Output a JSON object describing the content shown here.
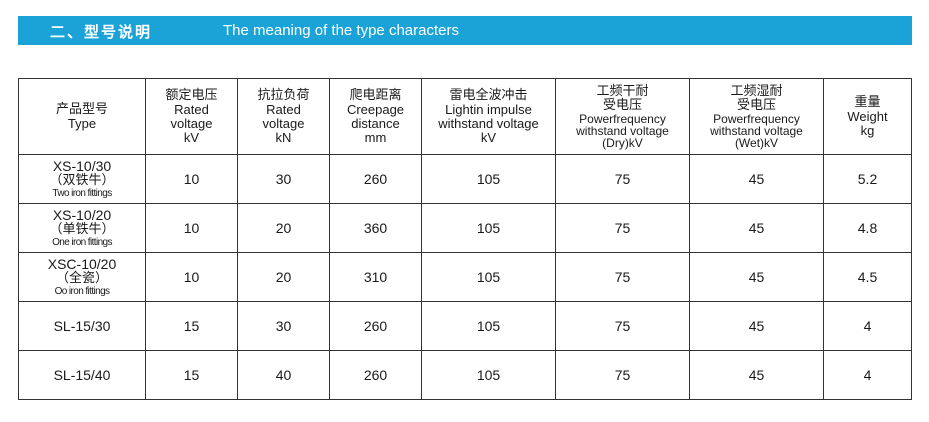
{
  "banner": {
    "title_zh": "二、型号说明",
    "title_en": "The meaning of the type characters"
  },
  "table": {
    "headers": [
      {
        "zh": "产品型号",
        "en": [
          "Type"
        ]
      },
      {
        "zh": "额定电压",
        "en": [
          "Rated",
          "voltage",
          "kV"
        ]
      },
      {
        "zh": "抗拉负荷",
        "en": [
          "Rated",
          "voltage",
          "kN"
        ]
      },
      {
        "zh": "爬电距离",
        "en": [
          "Creepage",
          "distance",
          "mm"
        ]
      },
      {
        "zh": "雷电全波冲击",
        "en": [
          "Lightin impulse",
          "withstand voltage",
          "kV"
        ]
      },
      {
        "zh": "工频干耐",
        "zh2": "受电压",
        "en": [
          "Powerfrequency",
          "withstand voltage",
          "(Dry)kV"
        ]
      },
      {
        "zh": "工频湿耐",
        "zh2": "受电压",
        "en": [
          "Powerfrequency",
          "withstand voltage",
          "(Wet)kV"
        ]
      },
      {
        "zh": "重量",
        "en": [
          "Weight",
          "kg"
        ]
      }
    ],
    "rows": [
      {
        "type": "XS-10/30",
        "type_zh": "（双铁牛）",
        "type_en": "Two iron fittings",
        "values": [
          "10",
          "30",
          "260",
          "105",
          "75",
          "45",
          "5.2"
        ]
      },
      {
        "type": "XS-10/20",
        "type_zh": "（单铁牛）",
        "type_en": "One iron fittings",
        "values": [
          "10",
          "20",
          "360",
          "105",
          "75",
          "45",
          "4.8"
        ]
      },
      {
        "type": "XSC-10/20",
        "type_zh": "（全瓷）",
        "type_en": "Oo iron fittings",
        "values": [
          "10",
          "20",
          "310",
          "105",
          "75",
          "45",
          "4.5"
        ]
      },
      {
        "type": "SL-15/30",
        "type_zh": "",
        "type_en": "",
        "values": [
          "15",
          "30",
          "260",
          "105",
          "75",
          "45",
          "4"
        ]
      },
      {
        "type": "SL-15/40",
        "type_zh": "",
        "type_en": "",
        "values": [
          "15",
          "40",
          "260",
          "105",
          "75",
          "45",
          "4"
        ]
      }
    ]
  }
}
